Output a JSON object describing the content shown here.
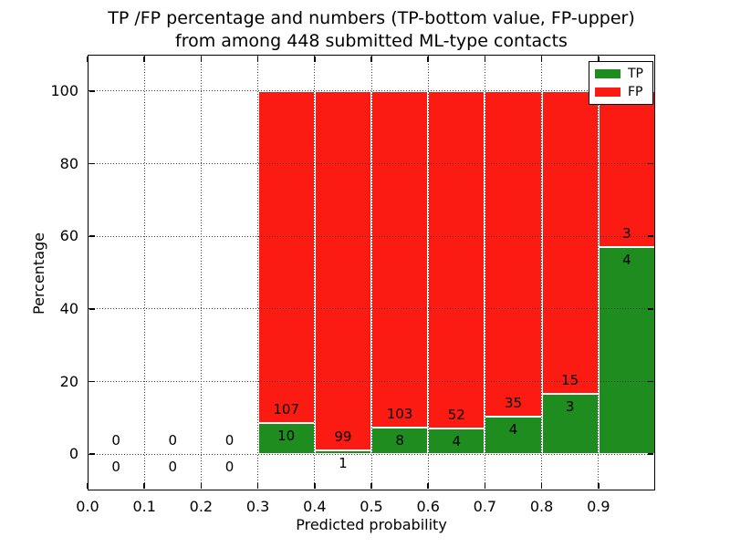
{
  "figure": {
    "title_line1": "TP /FP percentage and numbers (TP-bottom value, FP-upper)",
    "title_line2": "from among 448 submitted ML-type contacts",
    "xlabel": "Predicted probability",
    "ylabel": "Percentage"
  },
  "legend": {
    "position": "upper-right",
    "entries": [
      {
        "label": "TP",
        "color": "#1e8c1e"
      },
      {
        "label": "FP",
        "color": "#fb1b12"
      }
    ]
  },
  "colors": {
    "tp_green": "#1e8c1e",
    "fp_red": "#fb1b12",
    "background": "#ffffff",
    "text": "#000000",
    "grid": "#3c3c3c",
    "bar_edge": "#ffffff"
  },
  "chart_data": {
    "type": "bar",
    "stacked": true,
    "normalized_to_percent": true,
    "title": "TP /FP percentage and numbers (TP-bottom value, FP-upper) from among 448 submitted ML-type contacts",
    "xlabel": "Predicted probability",
    "ylabel": "Percentage",
    "xlim": [
      0.0,
      1.0
    ],
    "ylim": [
      -10,
      110
    ],
    "x_ticks": [
      0.0,
      0.1,
      0.2,
      0.3,
      0.4,
      0.5,
      0.6,
      0.7,
      0.8,
      0.9
    ],
    "y_ticks": [
      0,
      20,
      40,
      60,
      80,
      100
    ],
    "grid": true,
    "grid_style": "dotted",
    "legend_position": "upper right",
    "total_contacts": 448,
    "series": [
      {
        "name": "TP",
        "color": "#1e8c1e",
        "stack_order": "bottom"
      },
      {
        "name": "FP",
        "color": "#fb1b12",
        "stack_order": "top"
      }
    ],
    "bins": [
      {
        "range": [
          0.0,
          0.1
        ],
        "tp": 0,
        "fp": 0
      },
      {
        "range": [
          0.1,
          0.2
        ],
        "tp": 0,
        "fp": 0
      },
      {
        "range": [
          0.2,
          0.3
        ],
        "tp": 0,
        "fp": 0
      },
      {
        "range": [
          0.3,
          0.4
        ],
        "tp": 10,
        "fp": 107
      },
      {
        "range": [
          0.4,
          0.5
        ],
        "tp": 1,
        "fp": 99
      },
      {
        "range": [
          0.5,
          0.6
        ],
        "tp": 8,
        "fp": 103
      },
      {
        "range": [
          0.6,
          0.7
        ],
        "tp": 4,
        "fp": 52
      },
      {
        "range": [
          0.7,
          0.8
        ],
        "tp": 4,
        "fp": 35
      },
      {
        "range": [
          0.8,
          0.9
        ],
        "tp": 3,
        "fp": 15
      },
      {
        "range": [
          0.9,
          1.0
        ],
        "tp": 4,
        "fp": 3
      }
    ]
  }
}
